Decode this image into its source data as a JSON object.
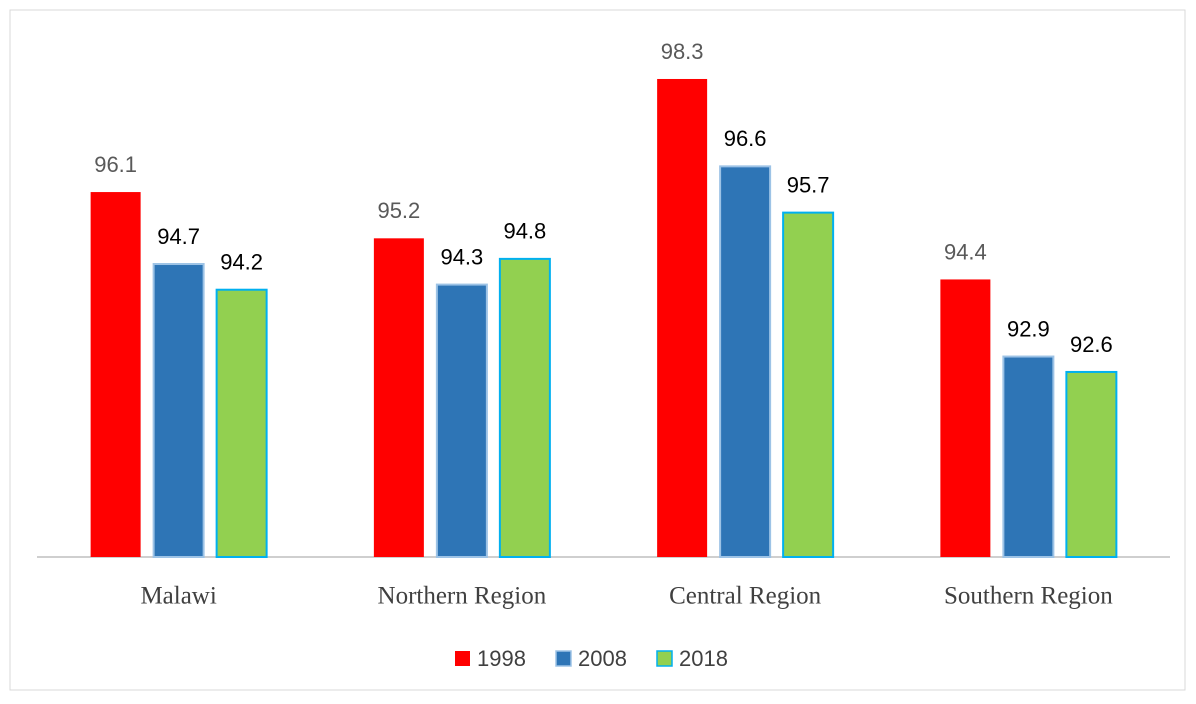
{
  "chart_data": {
    "type": "bar",
    "categories": [
      "Malawi",
      "Northern Region",
      "Central Region",
      "Southern Region"
    ],
    "series": [
      {
        "name": "1998",
        "color": "#ff0000",
        "values": [
          96.1,
          95.2,
          98.3,
          94.4
        ]
      },
      {
        "name": "2008",
        "color": "#2e75b6",
        "values": [
          94.7,
          94.3,
          96.6,
          92.9
        ]
      },
      {
        "name": "2018",
        "color": "#92d050",
        "values": [
          94.2,
          94.8,
          95.7,
          92.6
        ]
      }
    ],
    "ylim": [
      89,
      99
    ]
  }
}
